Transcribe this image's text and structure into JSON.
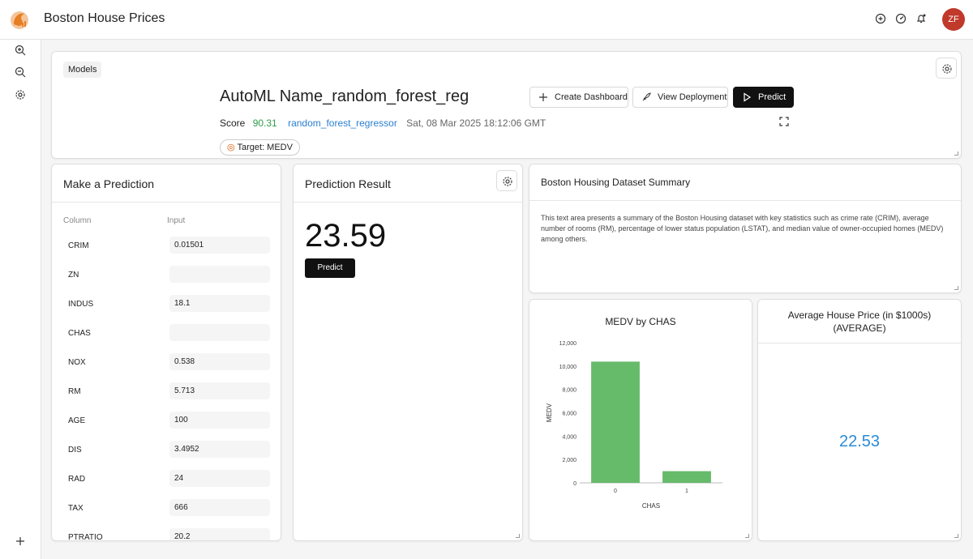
{
  "app": {
    "title": "Boston House Prices",
    "avatar_initials": "ZF",
    "avatar_color": "#c0392b",
    "logo_color": "#e67e22"
  },
  "model_card": {
    "tab_label": "Models",
    "model_name": "AutoML Name_random_forest_reg",
    "buttons": {
      "create_dashboard": "Create Dashboard",
      "view_deployment": "View Deployment",
      "predict": "Predict"
    },
    "score_label": "Score",
    "score_value": "90.31",
    "algorithm": "random_forest_regressor",
    "timestamp": "Sat, 08 Mar 2025 18:12:06 GMT",
    "target": "Target: MEDV"
  },
  "prediction_form": {
    "title": "Make a Prediction",
    "column_header": "Column",
    "input_header": "Input",
    "rows": [
      {
        "column": "CRIM",
        "value": "0.01501"
      },
      {
        "column": "ZN",
        "value": ""
      },
      {
        "column": "INDUS",
        "value": "18.1"
      },
      {
        "column": "CHAS",
        "value": ""
      },
      {
        "column": "NOX",
        "value": "0.538"
      },
      {
        "column": "RM",
        "value": "5.713"
      },
      {
        "column": "AGE",
        "value": "100"
      },
      {
        "column": "DIS",
        "value": "3.4952"
      },
      {
        "column": "RAD",
        "value": "24"
      },
      {
        "column": "TAX",
        "value": "666"
      },
      {
        "column": "PTRATIO",
        "value": "20.2"
      }
    ]
  },
  "prediction_result": {
    "title": "Prediction Result",
    "value": "23.59",
    "predict_label": "Predict"
  },
  "summary": {
    "title": "Boston Housing Dataset Summary",
    "text": "This text area presents a summary of the Boston Housing dataset with key statistics such as crime rate (CRIM), average number of rooms (RM), percentage of lower status population (LSTAT), and median value of owner-occupied homes (MEDV) among others."
  },
  "chart_data": {
    "type": "bar",
    "title": "MEDV by CHAS",
    "categories": [
      "0",
      "1"
    ],
    "values": [
      10380,
      1000
    ],
    "xlabel": "CHAS",
    "ylabel": "MEDV",
    "ylim": [
      0,
      12000
    ],
    "yticks": [
      "0",
      "2,000",
      "4,000",
      "6,000",
      "8,000",
      "10,000",
      "12,000"
    ],
    "ytick_values": [
      0,
      2000,
      4000,
      6000,
      8000,
      10000,
      12000
    ],
    "grid": false,
    "bar_color": "#66bb6a"
  },
  "kpi": {
    "title": "Average House Price (in $1000s) (AVERAGE)",
    "value": "22.53",
    "value_color": "#2a8bd6"
  }
}
